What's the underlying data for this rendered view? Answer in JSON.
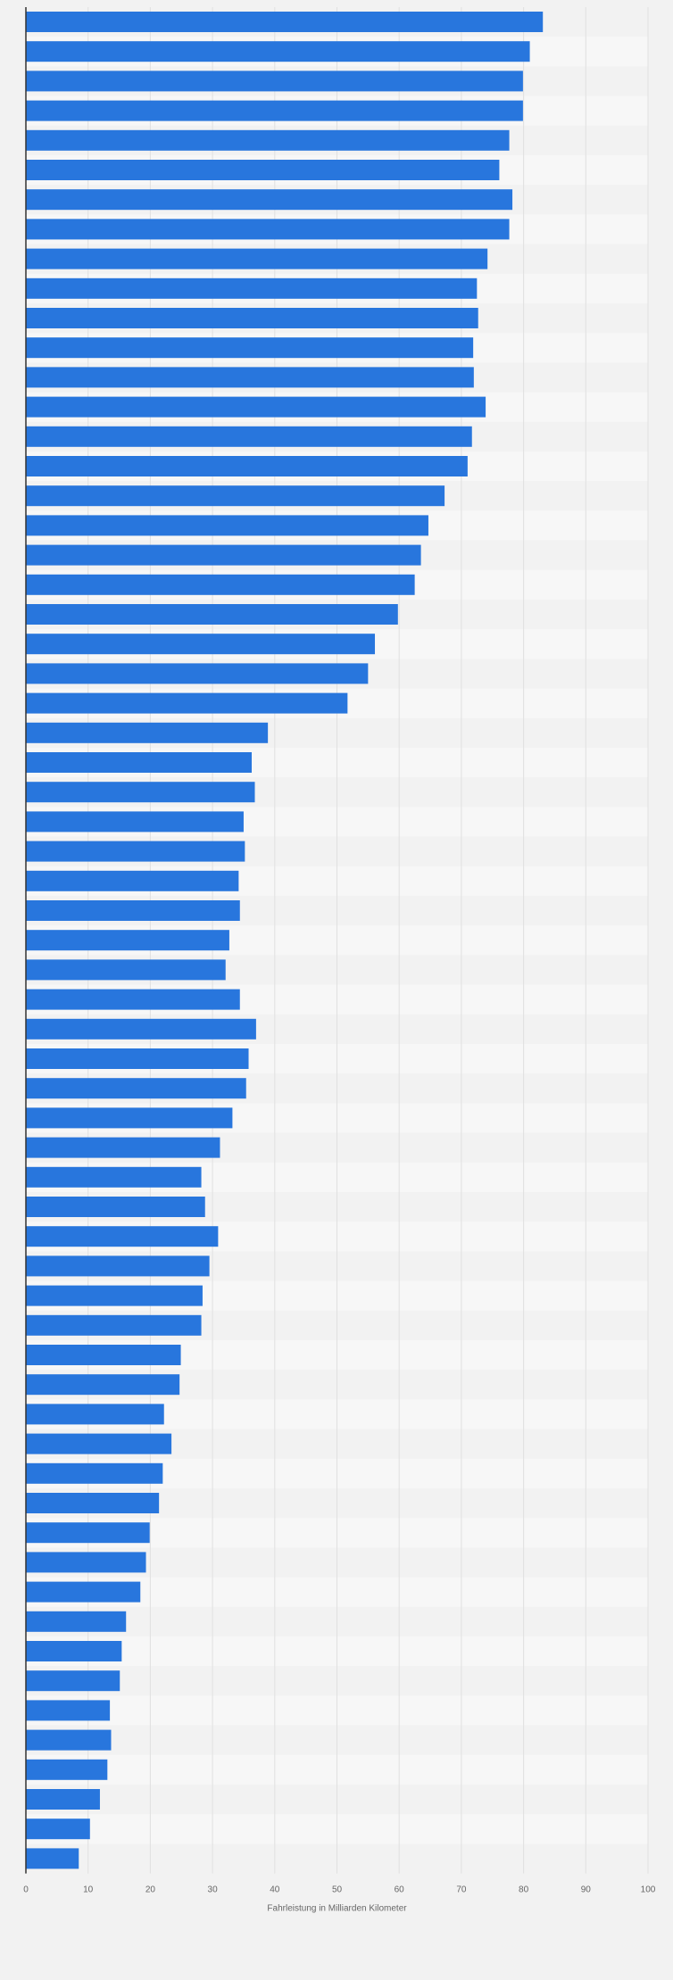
{
  "chart_data": {
    "type": "bar",
    "orientation": "horizontal",
    "xlabel": "Fahrleistung in Milliarden Kilometer",
    "ylabel": "",
    "xlim": [
      0,
      100
    ],
    "x_ticks": [
      "0",
      "10",
      "20",
      "30",
      "40",
      "50",
      "60",
      "70",
      "80",
      "90",
      "100"
    ],
    "grid": true,
    "values": [
      83.1,
      81.0,
      79.9,
      79.9,
      77.7,
      76.1,
      78.2,
      77.7,
      74.2,
      72.5,
      72.7,
      71.9,
      72.0,
      73.9,
      71.7,
      71.0,
      67.3,
      64.7,
      63.5,
      62.5,
      59.8,
      56.1,
      55.0,
      51.7,
      38.9,
      36.3,
      36.8,
      35.0,
      35.2,
      34.2,
      34.4,
      32.7,
      32.1,
      34.4,
      37.0,
      35.8,
      35.4,
      33.2,
      31.2,
      28.2,
      28.8,
      30.9,
      29.5,
      28.4,
      28.2,
      24.9,
      24.7,
      22.2,
      23.4,
      22.0,
      21.4,
      19.9,
      19.3,
      18.4,
      16.1,
      15.4,
      15.1,
      13.5,
      13.7,
      13.1,
      11.9,
      10.3,
      8.5
    ],
    "colors": {
      "bar": "#2876dd",
      "background": "#f2f2f2",
      "band_light": "#f7f7f7",
      "band_dark": "#f2f2f2",
      "grid": "#e0e0e0",
      "axis": "#333333",
      "text": "#666666"
    }
  }
}
